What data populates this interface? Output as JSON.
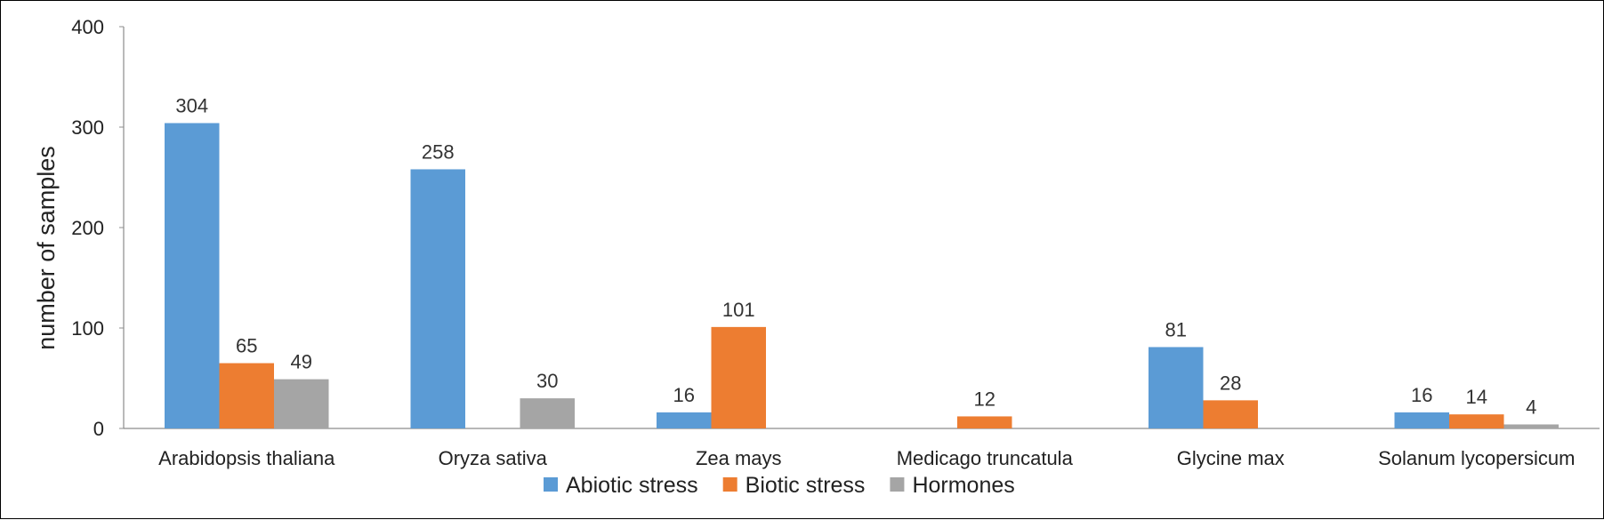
{
  "chart_data": {
    "type": "bar",
    "title": "",
    "xlabel": "",
    "ylabel": "number of samples",
    "ylim": [
      0,
      400
    ],
    "yticks": [
      0,
      100,
      200,
      300,
      400
    ],
    "grid": false,
    "legend_position": "bottom",
    "categories": [
      "Arabidopsis thaliana",
      "Oryza sativa",
      "Zea mays",
      "Medicago truncatula",
      "Glycine max",
      "Solanum lycopersicum"
    ],
    "series": [
      {
        "name": "Abiotic stress",
        "color": "#5B9BD5",
        "values": [
          304,
          258,
          16,
          null,
          81,
          16
        ]
      },
      {
        "name": "Biotic stress",
        "color": "#ED7D31",
        "values": [
          65,
          null,
          101,
          12,
          28,
          14
        ]
      },
      {
        "name": "Hormones",
        "color": "#A5A5A5",
        "values": [
          49,
          30,
          null,
          null,
          null,
          4
        ]
      }
    ]
  }
}
